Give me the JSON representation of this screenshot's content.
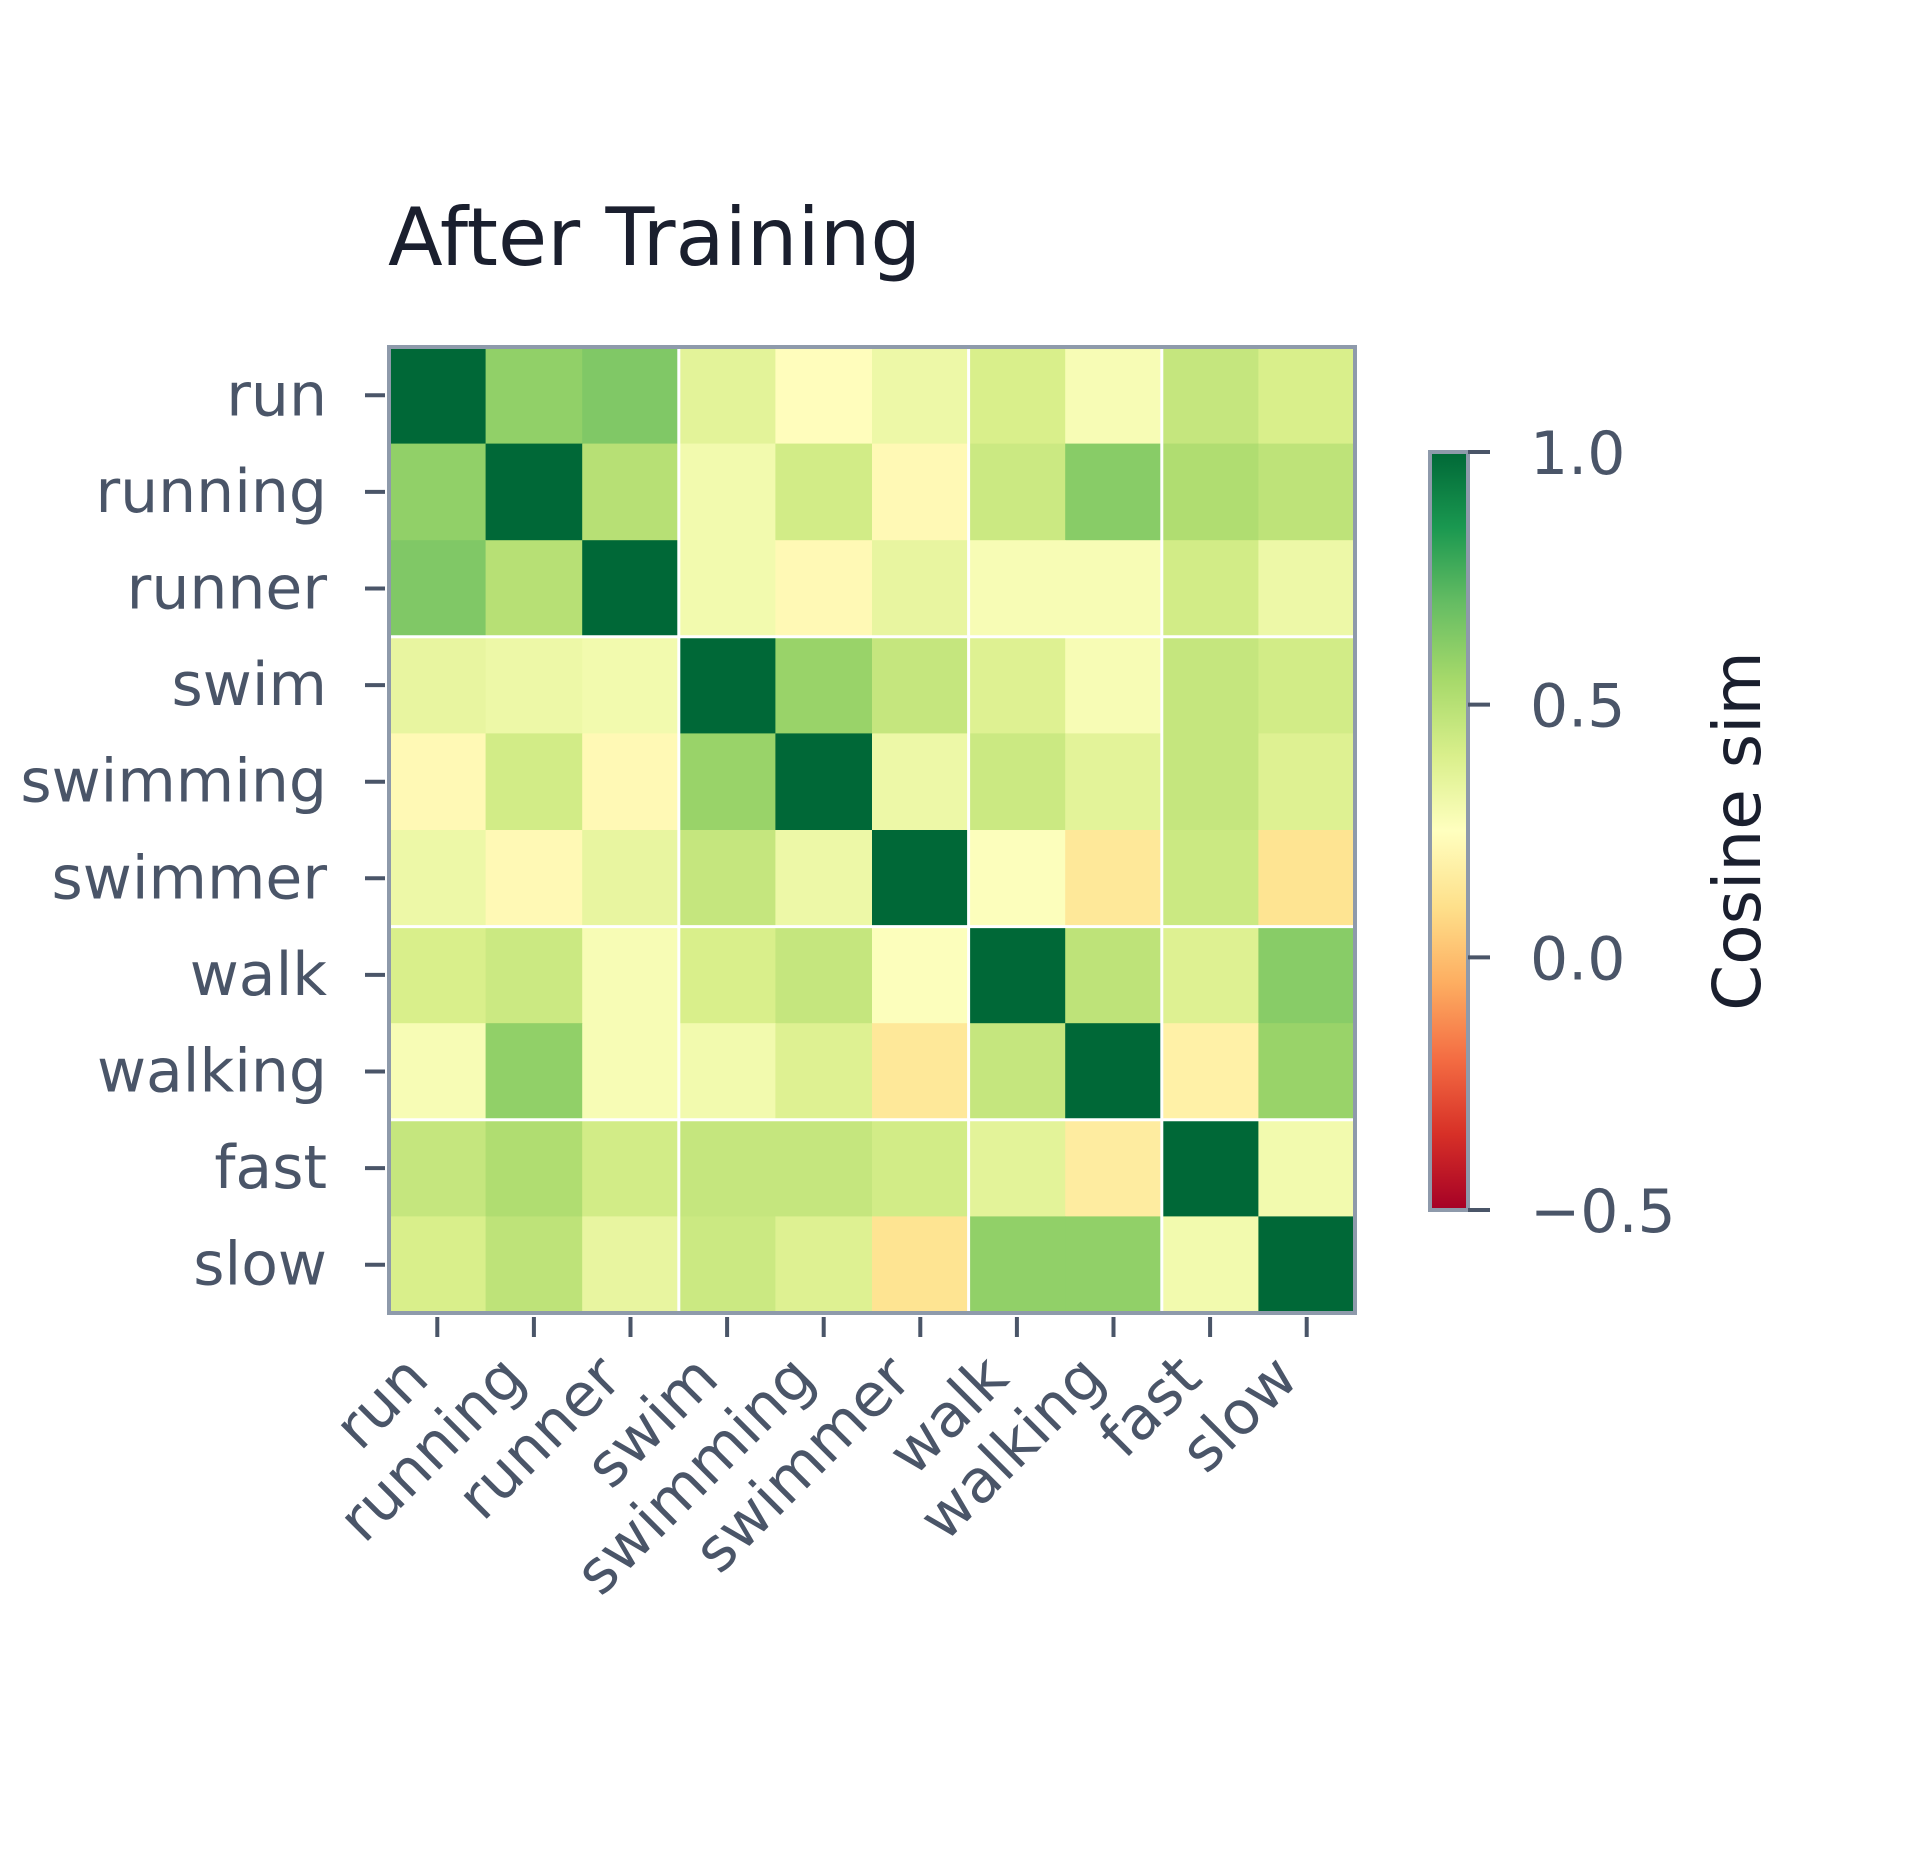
{
  "chart_data": {
    "type": "heatmap",
    "title": "After Training",
    "rows": [
      "run",
      "running",
      "runner",
      "swim",
      "swimming",
      "swimmer",
      "walk",
      "walking",
      "fast",
      "slow"
    ],
    "columns": [
      "run",
      "running",
      "runner",
      "swim",
      "swimming",
      "swimmer",
      "walk",
      "walking",
      "fast",
      "slow"
    ],
    "values": [
      [
        1.0,
        0.6,
        0.64,
        0.36,
        0.24,
        0.32,
        0.4,
        0.28,
        0.46,
        0.4
      ],
      [
        0.6,
        1.0,
        0.5,
        0.3,
        0.42,
        0.22,
        0.44,
        0.62,
        0.52,
        0.48
      ],
      [
        0.64,
        0.5,
        1.0,
        0.3,
        0.22,
        0.34,
        0.28,
        0.28,
        0.42,
        0.32
      ],
      [
        0.34,
        0.32,
        0.3,
        1.0,
        0.58,
        0.46,
        0.38,
        0.28,
        0.46,
        0.42
      ],
      [
        0.22,
        0.42,
        0.22,
        0.58,
        1.0,
        0.32,
        0.44,
        0.36,
        0.46,
        0.38
      ],
      [
        0.32,
        0.22,
        0.34,
        0.46,
        0.32,
        1.0,
        0.26,
        0.14,
        0.44,
        0.12
      ],
      [
        0.4,
        0.44,
        0.28,
        0.4,
        0.46,
        0.26,
        1.0,
        0.48,
        0.38,
        0.62
      ],
      [
        0.28,
        0.6,
        0.28,
        0.3,
        0.38,
        0.14,
        0.46,
        1.0,
        0.18,
        0.58
      ],
      [
        0.46,
        0.52,
        0.42,
        0.46,
        0.46,
        0.42,
        0.36,
        0.16,
        1.0,
        0.3
      ],
      [
        0.4,
        0.48,
        0.34,
        0.44,
        0.38,
        0.12,
        0.6,
        0.6,
        0.3,
        1.0
      ]
    ],
    "group_boundaries_after": [
      2,
      5,
      7
    ],
    "colorbar": {
      "title": "Cosine sim",
      "colormap": "RdYlGn",
      "range": [
        -0.5,
        1.0
      ],
      "ticks": [
        1.0,
        0.5,
        0.0,
        -0.5
      ],
      "tick_labels": [
        "1.0",
        "0.5",
        "0.0",
        "−0.5"
      ]
    },
    "xlabel": "",
    "ylabel": ""
  }
}
